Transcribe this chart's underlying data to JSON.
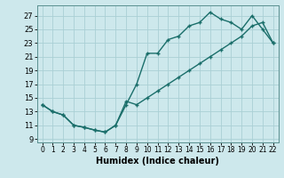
{
  "xlabel": "Humidex (Indice chaleur)",
  "bg_color": "#cde8ec",
  "grid_color": "#aacfd5",
  "line_color": "#1a6e6a",
  "spine_color": "#5a9090",
  "xlim": [
    -0.5,
    22.5
  ],
  "ylim": [
    8.5,
    28.5
  ],
  "xticks": [
    0,
    1,
    2,
    3,
    4,
    5,
    6,
    7,
    8,
    9,
    10,
    11,
    12,
    13,
    14,
    15,
    16,
    17,
    18,
    19,
    20,
    21,
    22
  ],
  "yticks": [
    9,
    11,
    13,
    15,
    17,
    19,
    21,
    23,
    25,
    27
  ],
  "curve1_x": [
    0,
    1,
    2,
    3,
    4,
    5,
    6,
    7,
    8,
    9,
    10,
    11,
    12,
    13,
    14,
    15,
    16,
    17,
    18,
    19,
    20,
    21,
    22
  ],
  "curve1_y": [
    14,
    13,
    12.5,
    11,
    10.7,
    10.3,
    10,
    11,
    14,
    17,
    21.5,
    21.5,
    23.5,
    24,
    25.5,
    26,
    27.5,
    26.5,
    26,
    25,
    27,
    25,
    23
  ],
  "curve2_x": [
    0,
    1,
    2,
    3,
    4,
    5,
    6,
    7,
    8,
    9,
    10,
    11,
    12,
    13,
    14,
    15,
    16,
    17,
    18,
    19,
    20,
    21,
    22
  ],
  "curve2_y": [
    14,
    13,
    12.5,
    11,
    10.7,
    10.3,
    10,
    11,
    14.5,
    14,
    15,
    16,
    17,
    18,
    19,
    20,
    21,
    22,
    23,
    24,
    25.5,
    26,
    23
  ]
}
